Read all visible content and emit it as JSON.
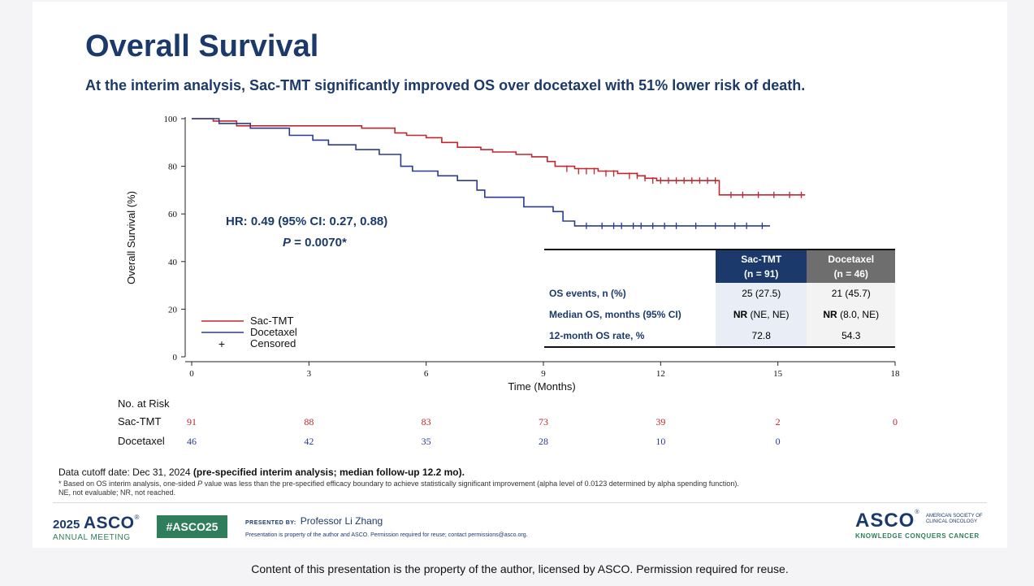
{
  "slide": {
    "title": "Overall Survival",
    "subtitle": "At the interim analysis, Sac-TMT significantly improved OS over docetaxel with 51% lower risk of death."
  },
  "chart_data": {
    "type": "line",
    "title": "",
    "xlabel": "Time (Months)",
    "ylabel": "Overall Survival (%)",
    "xlim": [
      0,
      18
    ],
    "ylim": [
      0,
      100
    ],
    "x_ticks": [
      0,
      3,
      6,
      9,
      12,
      15,
      18
    ],
    "y_ticks": [
      0,
      20,
      40,
      60,
      80,
      100
    ],
    "colors": {
      "sac": "#c0262d",
      "doc": "#2b3a8f"
    },
    "series": [
      {
        "name": "Sac-TMT",
        "key": "sac",
        "steps": [
          [
            0,
            100
          ],
          [
            0.55,
            100
          ],
          [
            0.55,
            99
          ],
          [
            1.15,
            99
          ],
          [
            1.15,
            97
          ],
          [
            2.2,
            97
          ],
          [
            2.2,
            97
          ],
          [
            4.35,
            97
          ],
          [
            4.35,
            96
          ],
          [
            5.2,
            96
          ],
          [
            5.2,
            94
          ],
          [
            5.5,
            94
          ],
          [
            5.5,
            93
          ],
          [
            6.0,
            93
          ],
          [
            6.0,
            92
          ],
          [
            6.4,
            92
          ],
          [
            6.4,
            90
          ],
          [
            6.8,
            90
          ],
          [
            6.8,
            88
          ],
          [
            7.4,
            88
          ],
          [
            7.4,
            87
          ],
          [
            7.7,
            87
          ],
          [
            7.7,
            86
          ],
          [
            8.3,
            86
          ],
          [
            8.3,
            85
          ],
          [
            8.7,
            85
          ],
          [
            8.7,
            84
          ],
          [
            9.1,
            84
          ],
          [
            9.1,
            82
          ],
          [
            9.3,
            82
          ],
          [
            9.3,
            80
          ],
          [
            9.8,
            80
          ],
          [
            9.8,
            79
          ],
          [
            10.4,
            79
          ],
          [
            10.4,
            78
          ],
          [
            10.9,
            78
          ],
          [
            10.9,
            77
          ],
          [
            11.4,
            77
          ],
          [
            11.4,
            76
          ],
          [
            11.6,
            76
          ],
          [
            11.6,
            75
          ],
          [
            11.9,
            75
          ],
          [
            11.9,
            74
          ],
          [
            13.5,
            74
          ],
          [
            13.5,
            68
          ],
          [
            15.7,
            68
          ]
        ],
        "censored": [
          [
            9.6,
            79
          ],
          [
            9.9,
            78
          ],
          [
            10.1,
            78
          ],
          [
            10.3,
            78
          ],
          [
            10.6,
            77
          ],
          [
            10.8,
            77
          ],
          [
            11.2,
            76
          ],
          [
            11.4,
            76
          ],
          [
            11.6,
            75
          ],
          [
            11.8,
            74
          ],
          [
            12.0,
            74
          ],
          [
            12.2,
            74
          ],
          [
            12.4,
            74
          ],
          [
            12.6,
            74
          ],
          [
            12.8,
            74
          ],
          [
            13.0,
            74
          ],
          [
            13.2,
            74
          ],
          [
            13.4,
            74
          ],
          [
            13.8,
            68
          ],
          [
            14.1,
            68
          ],
          [
            14.5,
            68
          ],
          [
            14.9,
            68
          ],
          [
            15.3,
            68
          ],
          [
            15.6,
            68
          ]
        ]
      },
      {
        "name": "Docetaxel",
        "key": "doc",
        "steps": [
          [
            0,
            100
          ],
          [
            0.7,
            100
          ],
          [
            0.7,
            98
          ],
          [
            1.5,
            98
          ],
          [
            1.5,
            96
          ],
          [
            2.5,
            96
          ],
          [
            2.5,
            93
          ],
          [
            3.1,
            93
          ],
          [
            3.1,
            91
          ],
          [
            3.5,
            91
          ],
          [
            3.5,
            89
          ],
          [
            4.2,
            89
          ],
          [
            4.2,
            87
          ],
          [
            4.8,
            87
          ],
          [
            4.8,
            85
          ],
          [
            5.35,
            85
          ],
          [
            5.35,
            80
          ],
          [
            5.65,
            80
          ],
          [
            5.65,
            78
          ],
          [
            6.3,
            78
          ],
          [
            6.3,
            76
          ],
          [
            6.8,
            76
          ],
          [
            6.8,
            74
          ],
          [
            7.3,
            74
          ],
          [
            7.3,
            70
          ],
          [
            7.5,
            70
          ],
          [
            7.5,
            67
          ],
          [
            8.5,
            67
          ],
          [
            8.5,
            63
          ],
          [
            9.25,
            63
          ],
          [
            9.25,
            61
          ],
          [
            9.5,
            61
          ],
          [
            9.5,
            57
          ],
          [
            9.8,
            57
          ],
          [
            9.8,
            55
          ],
          [
            14.8,
            55
          ]
        ],
        "censored": [
          [
            10.1,
            55
          ],
          [
            10.5,
            55
          ],
          [
            10.8,
            55
          ],
          [
            11.0,
            55
          ],
          [
            11.3,
            55
          ],
          [
            11.5,
            55
          ],
          [
            11.8,
            55
          ],
          [
            12.1,
            55
          ],
          [
            12.4,
            55
          ],
          [
            12.9,
            55
          ],
          [
            13.4,
            55
          ],
          [
            13.9,
            55
          ],
          [
            14.2,
            55
          ],
          [
            14.6,
            55
          ]
        ]
      }
    ],
    "hr_text": "HR: 0.49 (95% CI: 0.27, 0.88)",
    "p_label": "P",
    "p_value": " = 0.0070*",
    "legend": [
      "Sac-TMT",
      "Docetaxel",
      "Censored"
    ],
    "censor_symbol": "+",
    "risk_label": "No. at Risk",
    "risk": [
      {
        "name": "Sac-TMT",
        "key": "sac",
        "values": [
          "91",
          "88",
          "83",
          "73",
          "39",
          "2",
          "0"
        ]
      },
      {
        "name": "Docetaxel",
        "key": "doc",
        "values": [
          "46",
          "42",
          "35",
          "28",
          "10",
          "0"
        ]
      }
    ]
  },
  "os_table": {
    "headers": [
      {
        "name": "Sac-TMT",
        "n": "(n = 91)"
      },
      {
        "name": "Docetaxel",
        "n": "(n = 46)"
      }
    ],
    "rows": [
      {
        "label": "OS events, n (%)",
        "sac": "25 (27.5)",
        "sac_bold": "",
        "doc": "21 (45.7)",
        "doc_bold": ""
      },
      {
        "label": "Median OS, months (95% CI)",
        "sac": " (NE, NE)",
        "sac_bold": "NR",
        "doc": " (8.0, NE)",
        "doc_bold": "NR"
      },
      {
        "label": "12-month OS rate, %",
        "sac": "72.8",
        "sac_bold": "",
        "doc": "54.3",
        "doc_bold": ""
      }
    ]
  },
  "footer": {
    "cutoff": "Data cutoff date: Dec 31, 2024",
    "cutoff_bold": " (pre-specified interim analysis; median follow-up 12.2 mo).",
    "note_a": "* Based on OS interim analysis, one-sided ",
    "note_p": "P",
    "note_b": " value was less than the pre-specified efficacy boundary to achieve statistically significant improvement (alpha level of 0.0123 determined by alpha spending function).",
    "note2": "NE, not evaluable; NR, not reached."
  },
  "branding": {
    "year": "2025",
    "asco": "ASCO",
    "registered": "®",
    "annual_meeting": "ANNUAL MEETING",
    "hashtag": "#ASCO25",
    "presented_by": "PRESENTED BY:",
    "presenter": "Professor Li Zhang",
    "property_note": "Presentation is property of the author and ASCO. Permission required for reuse; contact permissions@asco.org.",
    "society_line1": "AMERICAN SOCIETY OF",
    "society_line2": "CLINICAL ONCOLOGY",
    "tagline": "KNOWLEDGE CONQUERS CANCER"
  },
  "caption": "Content of this presentation is the property of the author, licensed by ASCO. Permission required for reuse."
}
